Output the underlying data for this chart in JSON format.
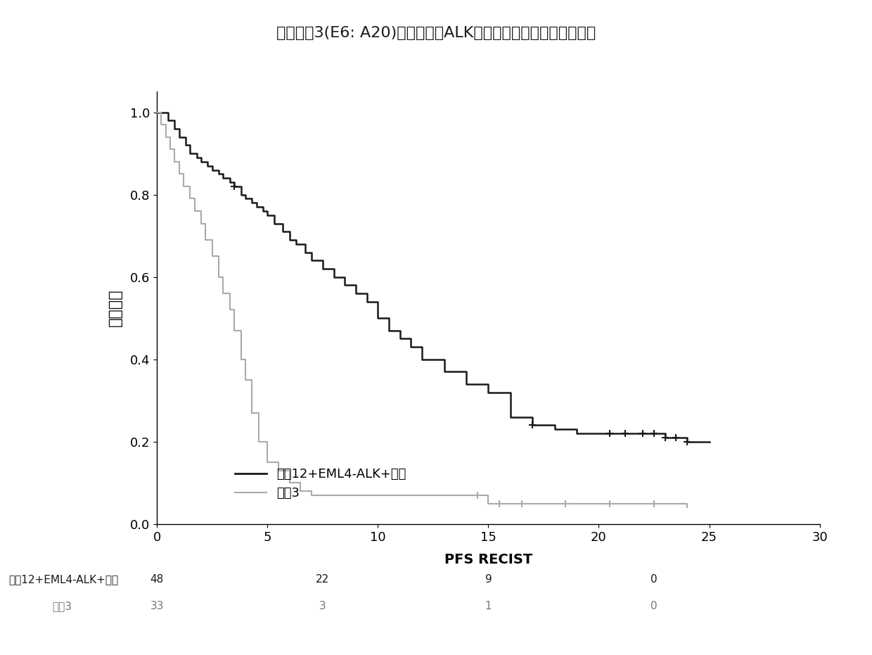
{
  "title": "具有变体3(E6: A20)相比于其它ALK融合物的患者中的无进展存活",
  "xlabel": "PFS RECIST",
  "ylabel": "存活概率",
  "xlim": [
    0,
    30
  ],
  "ylim": [
    0.0,
    1.05
  ],
  "xticks": [
    0,
    5,
    10,
    15,
    20,
    25,
    30
  ],
  "yticks": [
    0.0,
    0.2,
    0.4,
    0.6,
    0.8,
    1.0
  ],
  "legend_labels": [
    "变体12+EML4-ALK+其它",
    "变体3"
  ],
  "group1_color": "#1a1a1a",
  "group2_color": "#aaaaaa",
  "background_color": "#ffffff",
  "at_risk_label1": "变体12+EML4-ALK+其它",
  "at_risk_label2": "变体3",
  "at_risk_values1": [
    "48",
    "22",
    "9",
    "0"
  ],
  "at_risk_values2": [
    "33",
    "3",
    "1",
    "0"
  ],
  "group1_times": [
    0,
    0.3,
    0.5,
    0.8,
    1.0,
    1.3,
    1.5,
    1.8,
    2.0,
    2.3,
    2.5,
    2.8,
    3.0,
    3.3,
    3.5,
    3.8,
    4.0,
    4.3,
    4.5,
    4.8,
    5.0,
    5.3,
    5.7,
    6.0,
    6.3,
    6.7,
    7.0,
    7.5,
    8.0,
    8.5,
    9.0,
    9.5,
    10.0,
    10.5,
    11.0,
    11.5,
    12.0,
    13.0,
    14.0,
    15.0,
    16.0,
    17.0,
    18.0,
    19.0,
    20.0,
    21.0,
    22.0,
    22.5,
    23.0,
    23.5,
    24.0,
    25.0
  ],
  "group1_surv": [
    1.0,
    1.0,
    0.98,
    0.96,
    0.94,
    0.92,
    0.9,
    0.89,
    0.88,
    0.87,
    0.86,
    0.85,
    0.84,
    0.83,
    0.82,
    0.8,
    0.79,
    0.78,
    0.77,
    0.76,
    0.75,
    0.73,
    0.71,
    0.69,
    0.68,
    0.66,
    0.64,
    0.62,
    0.6,
    0.58,
    0.56,
    0.54,
    0.5,
    0.47,
    0.45,
    0.43,
    0.4,
    0.37,
    0.34,
    0.32,
    0.26,
    0.24,
    0.23,
    0.22,
    0.22,
    0.22,
    0.22,
    0.22,
    0.21,
    0.21,
    0.2,
    0.2
  ],
  "group1_censored_times": [
    3.5,
    17.0,
    20.5,
    21.2,
    22.0,
    22.5,
    23.0,
    23.5,
    24.0
  ],
  "group1_censored_surv": [
    0.82,
    0.24,
    0.22,
    0.22,
    0.22,
    0.22,
    0.21,
    0.21,
    0.2
  ],
  "group2_times": [
    0,
    0.2,
    0.4,
    0.6,
    0.8,
    1.0,
    1.2,
    1.5,
    1.7,
    2.0,
    2.2,
    2.5,
    2.8,
    3.0,
    3.3,
    3.5,
    3.8,
    4.0,
    4.3,
    4.6,
    5.0,
    5.5,
    6.0,
    6.5,
    7.0,
    7.5,
    8.0,
    9.0,
    10.0,
    11.0,
    12.0,
    13.0,
    14.0,
    15.0,
    16.0,
    18.0,
    20.0,
    22.0,
    24.0
  ],
  "group2_surv": [
    1.0,
    0.97,
    0.94,
    0.91,
    0.88,
    0.85,
    0.82,
    0.79,
    0.76,
    0.73,
    0.69,
    0.65,
    0.6,
    0.56,
    0.52,
    0.47,
    0.4,
    0.35,
    0.27,
    0.2,
    0.15,
    0.13,
    0.1,
    0.08,
    0.07,
    0.07,
    0.07,
    0.07,
    0.07,
    0.07,
    0.07,
    0.07,
    0.07,
    0.05,
    0.05,
    0.05,
    0.05,
    0.05,
    0.04
  ],
  "group2_censored_times": [
    14.5,
    15.5,
    16.5,
    18.5,
    20.5,
    22.5
  ],
  "group2_censored_surv": [
    0.07,
    0.05,
    0.05,
    0.05,
    0.05,
    0.05
  ]
}
